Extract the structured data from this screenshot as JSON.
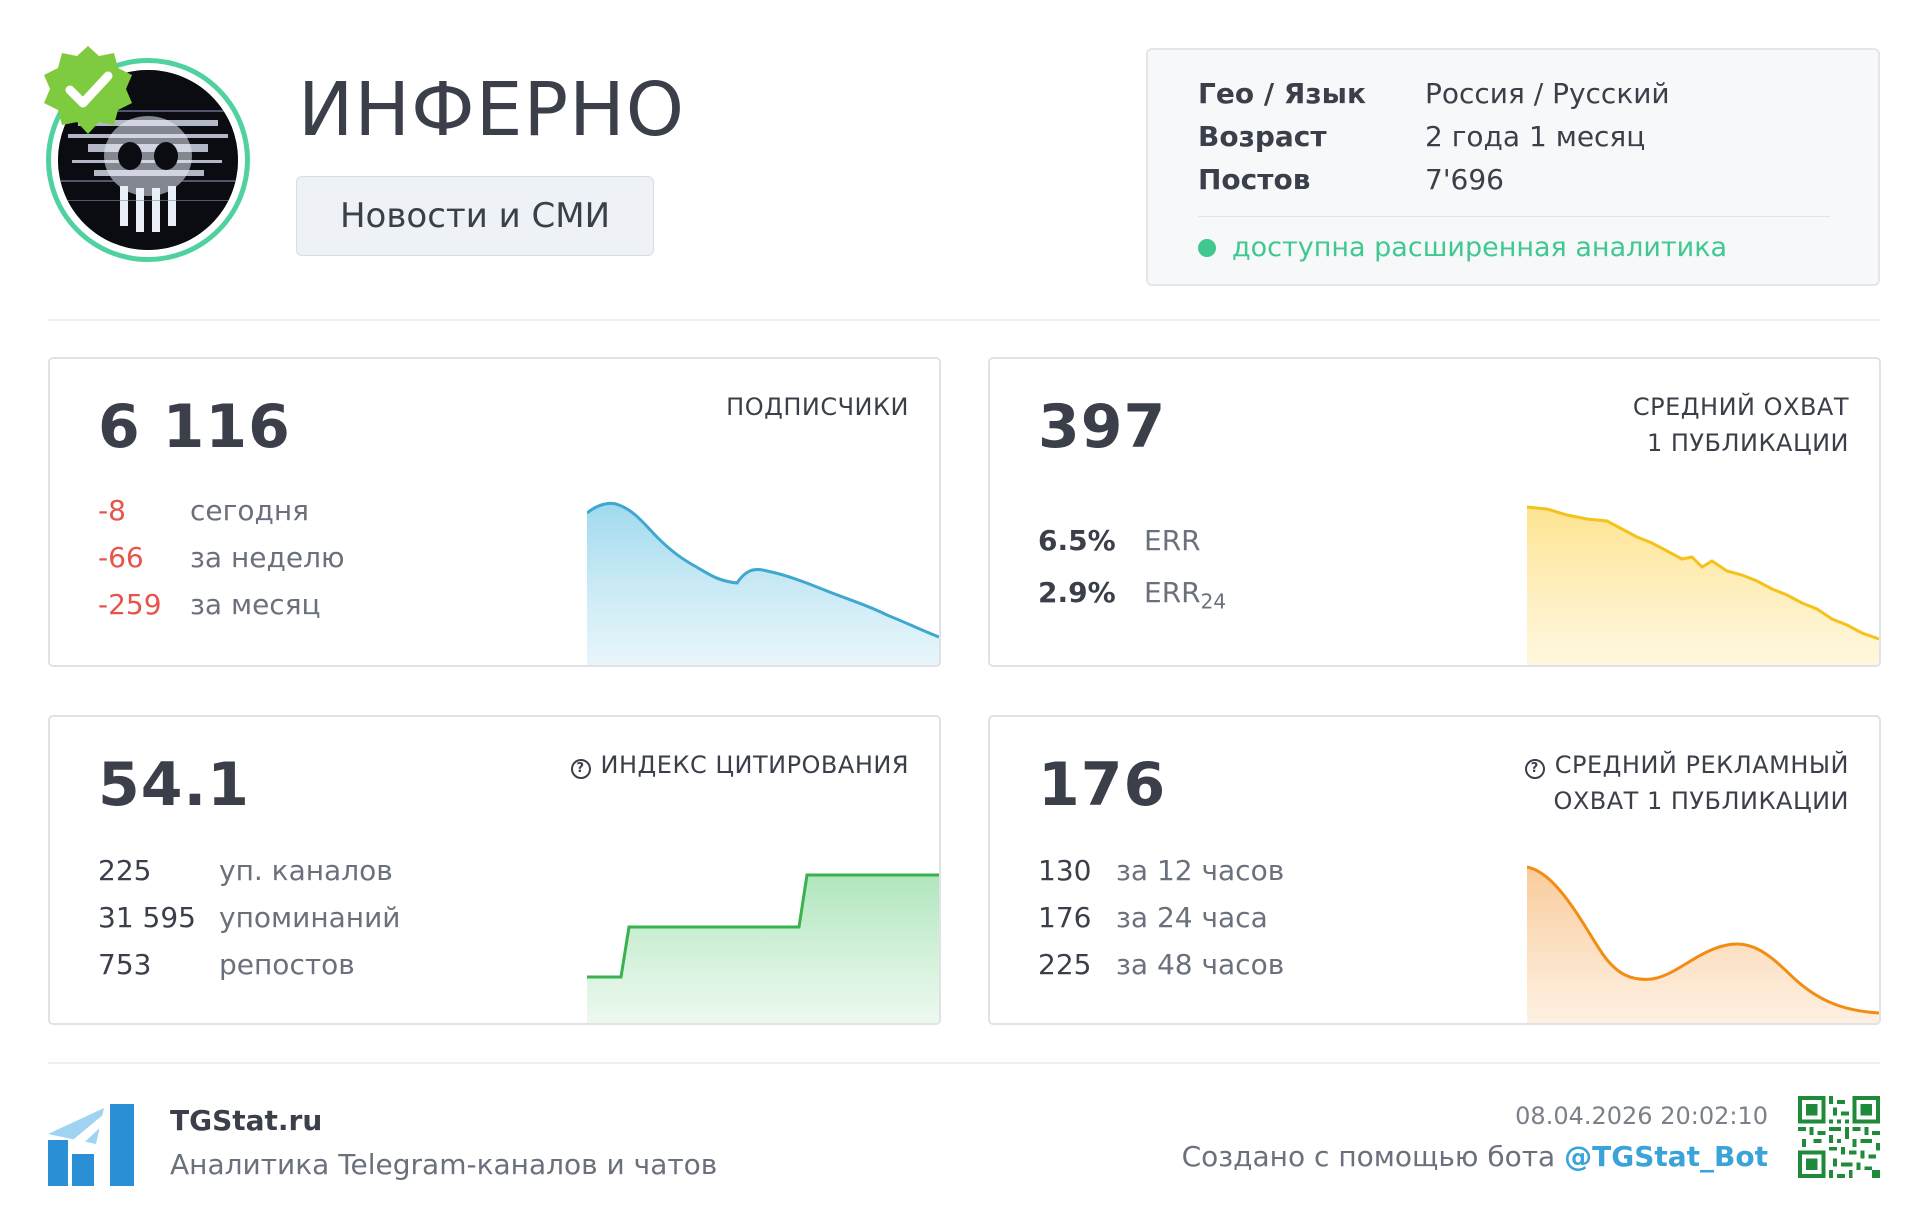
{
  "channel": {
    "title": "ИНФЕРНО",
    "category": "Новости и СМИ",
    "verified": true
  },
  "info": {
    "rows": [
      {
        "key": "Гео / Язык",
        "value": "Россия / Русский"
      },
      {
        "key": "Возраст",
        "value": "2 года 1 месяц"
      },
      {
        "key": "Постов",
        "value": "7'696"
      }
    ],
    "status": "доступна расширенная аналитика"
  },
  "cards": {
    "subscribers": {
      "value": "6 116",
      "label": "ПОДПИСЧИКИ",
      "stats": [
        {
          "num": "-8",
          "text": "сегодня"
        },
        {
          "num": "-66",
          "text": "за неделю"
        },
        {
          "num": "-259",
          "text": "за месяц"
        }
      ]
    },
    "reach": {
      "value": "397",
      "label_line1": "СРЕДНИЙ ОХВАТ",
      "label_line2": "1 ПУБЛИКАЦИИ",
      "err": "6.5%",
      "err_label": "ERR",
      "err24": "2.9%",
      "err24_label": "ERR",
      "err24_sub": "24"
    },
    "citation": {
      "value": "54.1",
      "label": "ИНДЕКС ЦИТИРОВАНИЯ",
      "stats": [
        {
          "num": "225",
          "text": "уп. каналов"
        },
        {
          "num": "31 595",
          "text": "упоминаний"
        },
        {
          "num": "753",
          "text": "репостов"
        }
      ]
    },
    "ad_reach": {
      "value": "176",
      "label_line1": "СРЕДНИЙ РЕКЛАМНЫЙ",
      "label_line2": "ОХВАТ 1 ПУБЛИКАЦИИ",
      "stats": [
        {
          "num": "130",
          "text": "за 12 часов"
        },
        {
          "num": "176",
          "text": "за 24 часа"
        },
        {
          "num": "225",
          "text": "за 48 часов"
        }
      ]
    }
  },
  "footer": {
    "brand": "TGStat.ru",
    "tagline": "Аналитика Telegram-каналов и чатов",
    "timestamp": "08.04.2026 20:02:10",
    "created_prefix": "Создано с помощью бота ",
    "bot": "@TGStat_Bot"
  },
  "colors": {
    "accent_green": "#3fc98e",
    "negative": "#e8534a",
    "subscribers_line": "#3ea8d0",
    "reach_line": "#f5c21a",
    "citation_line": "#37b24d",
    "ad_reach_line": "#f28c12",
    "bot_link": "#3aa3d8"
  },
  "icons": {
    "verified": "verified-badge-icon",
    "help": "help-circle-icon",
    "status": "status-dot-icon",
    "logo": "tgstat-logo-icon",
    "qr": "qr-code-icon"
  }
}
